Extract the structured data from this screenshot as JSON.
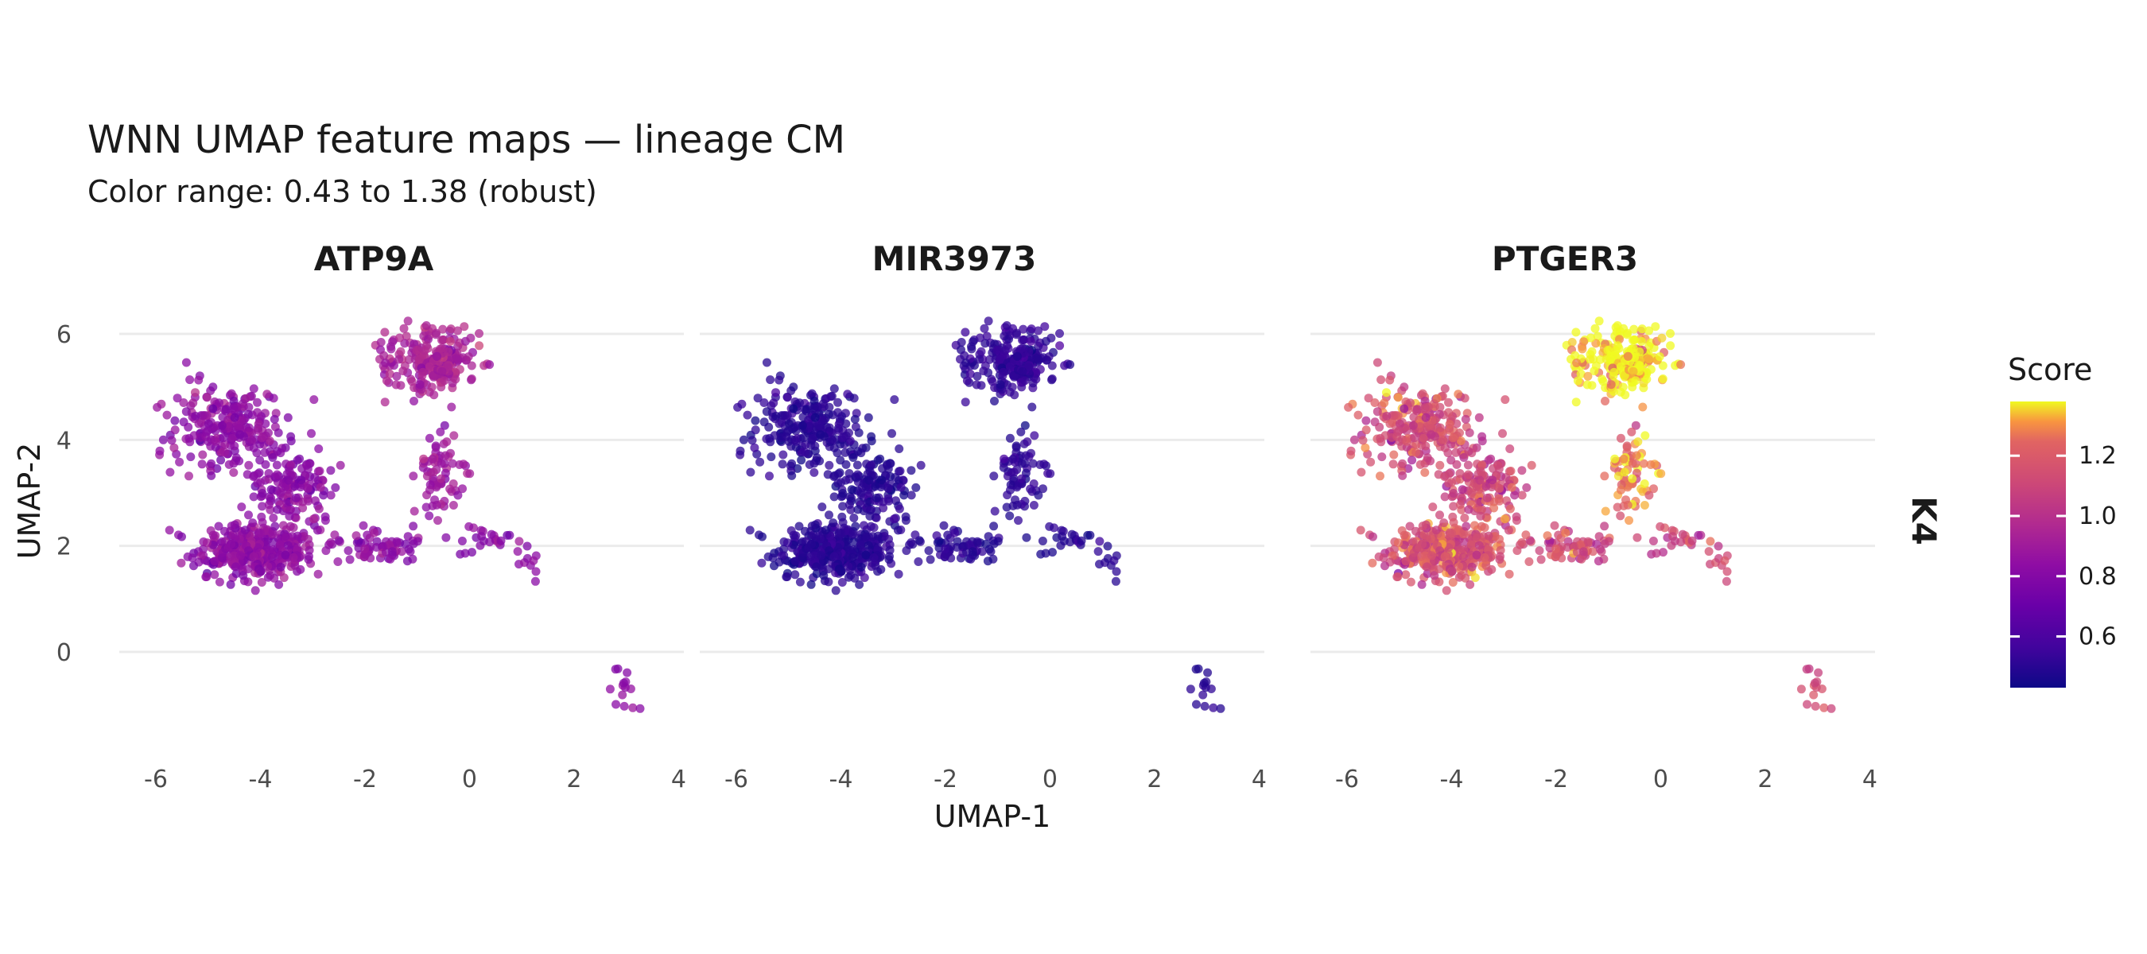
{
  "chart_data": {
    "type": "scatter",
    "title": "WNN UMAP feature maps — lineage CM",
    "subtitle": "Color range: 0.43 to 1.38 (robust)",
    "xlabel": "UMAP-1",
    "ylabel": "UMAP-2",
    "facet_row_label": "K4",
    "panels": [
      {
        "name": "ATP9A",
        "base_score": 0.83
      },
      {
        "name": "MIR3973",
        "base_score": 0.5
      },
      {
        "name": "PTGER3",
        "base_score": 1.12
      }
    ],
    "xlim": [
      -6.7,
      4.1
    ],
    "ylim": [
      -1.8,
      6.6
    ],
    "x_ticks": [
      -6,
      -4,
      -2,
      0,
      2,
      4
    ],
    "x_tick_labels": [
      "-6",
      "-4",
      "-2",
      "0",
      "2",
      "4"
    ],
    "y_ticks": [
      0,
      2,
      4,
      6
    ],
    "y_tick_labels": [
      "0",
      "2",
      "4",
      "6"
    ],
    "grid": "horizontal",
    "colormap": "plasma",
    "colorbar": {
      "title": "Score",
      "range": [
        0.43,
        1.38
      ],
      "ticks": [
        0.6,
        0.8,
        1.0,
        1.2
      ],
      "tick_labels": [
        "0.6",
        "0.8",
        "1.0",
        "1.2"
      ],
      "placement": "right"
    },
    "clusters": [
      {
        "center": [
          -4.1,
          1.9
        ],
        "spread": [
          0.95,
          0.45
        ],
        "n": 360,
        "score_shift": 0.02
      },
      {
        "center": [
          -4.6,
          4.2
        ],
        "spread": [
          0.9,
          0.7
        ],
        "n": 240,
        "score_shift": 0.0
      },
      {
        "center": [
          -3.4,
          3.1
        ],
        "spread": [
          0.75,
          0.55
        ],
        "n": 140,
        "score_shift": 0.0
      },
      {
        "center": [
          -0.7,
          5.5
        ],
        "spread": [
          0.75,
          0.55
        ],
        "n": 230,
        "score_shift": 0.18
      },
      {
        "center": [
          -0.6,
          3.4
        ],
        "spread": [
          0.35,
          0.7
        ],
        "n": 70,
        "score_shift": 0.1
      },
      {
        "center": [
          -1.8,
          2.0
        ],
        "spread": [
          0.8,
          0.25
        ],
        "n": 70,
        "score_shift": 0.0
      },
      {
        "center": [
          0.4,
          2.1
        ],
        "spread": [
          0.55,
          0.25
        ],
        "n": 25,
        "score_shift": -0.02
      },
      {
        "center": [
          1.2,
          1.6
        ],
        "spread": [
          0.2,
          0.15
        ],
        "n": 8,
        "score_shift": 0.0
      },
      {
        "center": [
          3.0,
          -0.7
        ],
        "spread": [
          0.3,
          0.25
        ],
        "n": 14,
        "score_shift": 0.0
      }
    ]
  }
}
